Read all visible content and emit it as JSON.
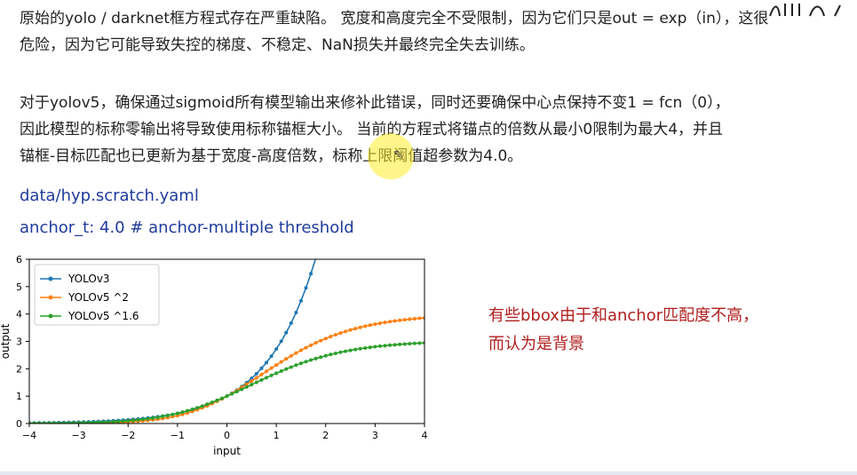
{
  "text": {
    "para1_line1": "原始的yolo / darknet框方程式存在严重缺陷。 宽度和高度完全不受限制，因为它们只是out = exp（in），这很",
    "para1_line2": "危险，因为它可能导致失控的梯度、不稳定、NaN损失并最终完全失去训练。",
    "para2_line1": "对于yolov5，确保通过sigmoid所有模型输出来修补此错误，同时还要确保中心点保持不变1 = fcn（0），",
    "para2_line2": "因此模型的标称零输出将导致使用标称锚框大小。 当前的方程式将锚点的倍数从最小0限制为最大4，并且",
    "para2_line3": "锚框-目标匹配也已更新为基于宽度-高度倍数，标称上限阈值超参数为4.0。",
    "config_file": "data/hyp.scratch.yaml",
    "config_line": "anchor_t: 4.0  # anchor-multiple threshold",
    "note_line1": "有些bbox由于和anchor匹配度不高，",
    "note_line2": "而认为是背景"
  },
  "chart_data": {
    "type": "line",
    "xlabel": "input",
    "ylabel": "output",
    "xlim": [
      -4,
      4
    ],
    "ylim": [
      0,
      6
    ],
    "xticks": [
      -4,
      -3,
      -2,
      -1,
      0,
      1,
      2,
      3,
      4
    ],
    "yticks": [
      0,
      1,
      2,
      3,
      4,
      5,
      6
    ],
    "xtick_labels": [
      "−4",
      "−3",
      "−2",
      "−1",
      "0",
      "1",
      "2",
      "3",
      "4"
    ],
    "ytick_labels": [
      "0",
      "1",
      "2",
      "3",
      "4",
      "5",
      "6"
    ],
    "legend_position": "top-left",
    "grid": false,
    "series": [
      {
        "name": "YOLOv3",
        "color": "#1f77b4",
        "formula": "exp(x)"
      },
      {
        "name": "YOLOv5 ^2",
        "color": "#ff7f0e",
        "formula": "(2*sigmoid(x))^2"
      },
      {
        "name": "YOLOv5 ^1.6",
        "color": "#2ca02c",
        "formula": "(2*sigmoid(x))^1.6"
      }
    ]
  },
  "colors": {
    "config_text": "#1f3b9c",
    "note_text": "#b01e1e",
    "cursor_highlight": "#ffec28"
  }
}
